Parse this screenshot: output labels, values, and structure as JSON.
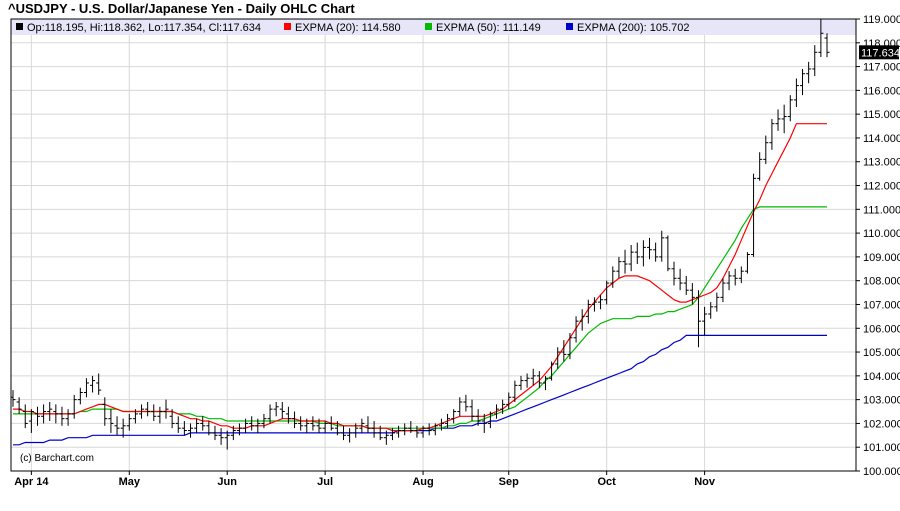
{
  "title": "^USDJPY - U.S. Dollar/Japanese Yen - Daily OHLC Chart",
  "legend": {
    "ohlc": "Op:118.195, Hi:118.362, Lo:117.354, Cl:117.634",
    "ema20": "EXPMA (20): 114.580",
    "ema50": "EXPMA (50): 111.149",
    "ema200": "EXPMA (200): 105.702"
  },
  "credit": "(c) Barchart.com",
  "last_price_label": "117.634",
  "colors": {
    "ohlc": "#000000",
    "ema20": "#ff0000",
    "ema50": "#00bb00",
    "ema200": "#0000cc",
    "grid": "#d8d8d8",
    "legend_bg": "#e6e6f8",
    "plot_border": "#000000"
  },
  "chart_data": {
    "type": "line",
    "subtype": "ohlc",
    "x_labels": [
      "Apr 14",
      "May",
      "Jun",
      "Jul",
      "Aug",
      "Sep",
      "Oct",
      "Nov"
    ],
    "x_label_index": [
      3,
      19,
      35,
      51,
      67,
      81,
      97,
      113
    ],
    "ylim": [
      100.0,
      119.0
    ],
    "y_ticks": [
      100.0,
      101.0,
      102.0,
      103.0,
      104.0,
      105.0,
      106.0,
      107.0,
      108.0,
      109.0,
      110.0,
      111.0,
      112.0,
      113.0,
      114.0,
      115.0,
      116.0,
      117.0,
      118.0,
      119.0
    ],
    "y_tick_labels": [
      "100.000",
      "101.000",
      "102.000",
      "103.000",
      "104.000",
      "105.000",
      "106.000",
      "107.000",
      "108.000",
      "109.000",
      "110.000",
      "111.000",
      "112.000",
      "113.000",
      "114.000",
      "115.000",
      "116.000",
      "117.000",
      "118.000",
      "119.000"
    ],
    "grid": true,
    "legend_position": "top",
    "ohlc": [
      [
        103.1,
        103.4,
        102.7,
        103.0
      ],
      [
        102.9,
        103.1,
        102.4,
        102.6
      ],
      [
        102.5,
        102.8,
        101.8,
        102.0
      ],
      [
        102.1,
        102.6,
        101.6,
        102.5
      ],
      [
        102.4,
        102.7,
        101.9,
        102.3
      ],
      [
        102.3,
        102.8,
        102.0,
        102.5
      ],
      [
        102.5,
        102.9,
        102.1,
        102.6
      ],
      [
        102.5,
        102.8,
        102.0,
        102.4
      ],
      [
        102.4,
        102.7,
        101.9,
        102.2
      ],
      [
        102.2,
        102.6,
        101.9,
        102.4
      ],
      [
        102.4,
        103.2,
        102.2,
        103.0
      ],
      [
        103.0,
        103.5,
        102.8,
        103.3
      ],
      [
        103.3,
        103.9,
        103.1,
        103.7
      ],
      [
        103.6,
        104.0,
        103.3,
        103.8
      ],
      [
        103.7,
        104.1,
        103.2,
        103.4
      ],
      [
        102.8,
        103.1,
        101.9,
        102.2
      ],
      [
        102.2,
        102.6,
        101.6,
        102.0
      ],
      [
        101.9,
        102.3,
        101.5,
        101.8
      ],
      [
        101.8,
        102.2,
        101.4,
        101.9
      ],
      [
        101.9,
        102.4,
        101.7,
        102.2
      ],
      [
        102.2,
        102.6,
        102.0,
        102.4
      ],
      [
        102.4,
        102.8,
        102.2,
        102.6
      ],
      [
        102.6,
        102.9,
        102.3,
        102.5
      ],
      [
        102.5,
        102.8,
        102.1,
        102.3
      ],
      [
        102.3,
        102.7,
        102.0,
        102.5
      ],
      [
        102.5,
        103.0,
        102.2,
        102.6
      ],
      [
        102.3,
        102.6,
        101.8,
        102.0
      ],
      [
        102.0,
        102.3,
        101.6,
        101.8
      ],
      [
        101.8,
        102.1,
        101.5,
        101.7
      ],
      [
        101.7,
        102.0,
        101.4,
        101.8
      ],
      [
        101.8,
        102.2,
        101.6,
        102.0
      ],
      [
        102.0,
        102.3,
        101.7,
        101.9
      ],
      [
        101.9,
        102.1,
        101.5,
        101.6
      ],
      [
        101.6,
        101.9,
        101.3,
        101.5
      ],
      [
        101.5,
        101.8,
        101.1,
        101.4
      ],
      [
        101.4,
        101.7,
        100.9,
        101.5
      ],
      [
        101.5,
        101.9,
        101.3,
        101.7
      ],
      [
        101.7,
        102.0,
        101.5,
        101.8
      ],
      [
        101.8,
        102.2,
        101.6,
        102.0
      ],
      [
        102.0,
        102.3,
        101.7,
        101.9
      ],
      [
        101.9,
        102.2,
        101.6,
        102.0
      ],
      [
        102.0,
        102.4,
        101.8,
        102.2
      ],
      [
        102.2,
        102.8,
        102.0,
        102.6
      ],
      [
        102.6,
        102.9,
        102.3,
        102.7
      ],
      [
        102.6,
        102.9,
        102.2,
        102.5
      ],
      [
        102.4,
        102.7,
        102.0,
        102.2
      ],
      [
        102.2,
        102.5,
        101.8,
        102.0
      ],
      [
        102.0,
        102.3,
        101.7,
        101.9
      ],
      [
        101.9,
        102.2,
        101.6,
        102.0
      ],
      [
        102.0,
        102.3,
        101.7,
        101.9
      ],
      [
        101.9,
        102.2,
        101.6,
        101.8
      ],
      [
        101.8,
        102.1,
        101.6,
        102.0
      ],
      [
        102.0,
        102.3,
        101.7,
        101.8
      ],
      [
        101.8,
        102.1,
        101.5,
        101.6
      ],
      [
        101.6,
        101.9,
        101.3,
        101.5
      ],
      [
        101.5,
        101.8,
        101.2,
        101.6
      ],
      [
        101.6,
        102.0,
        101.4,
        101.8
      ],
      [
        101.8,
        102.2,
        101.6,
        102.0
      ],
      [
        101.9,
        102.3,
        101.6,
        101.8
      ],
      [
        101.8,
        102.1,
        101.4,
        101.6
      ],
      [
        101.6,
        101.9,
        101.3,
        101.4
      ],
      [
        101.4,
        101.7,
        101.1,
        101.5
      ],
      [
        101.5,
        101.8,
        101.3,
        101.6
      ],
      [
        101.6,
        101.9,
        101.4,
        101.7
      ],
      [
        101.7,
        102.0,
        101.5,
        101.8
      ],
      [
        101.8,
        102.1,
        101.6,
        101.7
      ],
      [
        101.7,
        101.9,
        101.4,
        101.6
      ],
      [
        101.6,
        101.9,
        101.4,
        101.8
      ],
      [
        101.8,
        102.0,
        101.5,
        101.7
      ],
      [
        101.7,
        102.0,
        101.5,
        101.9
      ],
      [
        101.9,
        102.2,
        101.7,
        102.0
      ],
      [
        102.0,
        102.4,
        101.8,
        102.2
      ],
      [
        102.2,
        102.6,
        102.0,
        102.5
      ],
      [
        102.5,
        103.1,
        102.3,
        102.9
      ],
      [
        102.9,
        103.2,
        102.5,
        102.7
      ],
      [
        102.7,
        103.0,
        102.1,
        102.3
      ],
      [
        102.3,
        102.6,
        101.9,
        102.1
      ],
      [
        102.1,
        102.4,
        101.6,
        102.0
      ],
      [
        102.0,
        102.5,
        101.8,
        102.4
      ],
      [
        102.4,
        102.8,
        102.2,
        102.6
      ],
      [
        102.6,
        103.0,
        102.4,
        102.8
      ],
      [
        102.8,
        103.3,
        102.6,
        103.1
      ],
      [
        103.1,
        103.8,
        102.9,
        103.6
      ],
      [
        103.6,
        104.0,
        103.4,
        103.8
      ],
      [
        103.8,
        104.1,
        103.5,
        103.9
      ],
      [
        103.9,
        104.3,
        103.6,
        104.0
      ],
      [
        104.0,
        104.2,
        103.5,
        103.7
      ],
      [
        103.7,
        104.0,
        103.4,
        103.9
      ],
      [
        103.9,
        104.6,
        103.8,
        104.5
      ],
      [
        104.5,
        105.2,
        104.3,
        105.0
      ],
      [
        105.0,
        105.5,
        104.6,
        104.9
      ],
      [
        104.9,
        105.8,
        104.7,
        105.6
      ],
      [
        105.6,
        106.5,
        105.4,
        106.3
      ],
      [
        106.3,
        106.8,
        105.9,
        106.5
      ],
      [
        106.5,
        107.2,
        106.2,
        107.0
      ],
      [
        107.0,
        107.3,
        106.7,
        107.1
      ],
      [
        107.1,
        107.4,
        106.8,
        107.2
      ],
      [
        107.2,
        108.0,
        107.0,
        107.9
      ],
      [
        107.9,
        108.6,
        107.7,
        108.4
      ],
      [
        108.4,
        109.0,
        108.1,
        108.8
      ],
      [
        108.8,
        109.3,
        108.3,
        108.7
      ],
      [
        108.7,
        109.5,
        108.4,
        109.2
      ],
      [
        109.2,
        109.6,
        108.7,
        109.0
      ],
      [
        109.0,
        109.7,
        108.6,
        109.4
      ],
      [
        109.4,
        109.8,
        108.9,
        109.3
      ],
      [
        109.3,
        109.6,
        108.8,
        109.0
      ],
      [
        109.0,
        110.1,
        108.8,
        109.8
      ],
      [
        109.8,
        109.9,
        108.4,
        108.5
      ],
      [
        108.5,
        108.8,
        107.8,
        108.1
      ],
      [
        108.1,
        108.5,
        107.6,
        107.9
      ],
      [
        107.9,
        108.2,
        107.4,
        107.6
      ],
      [
        107.6,
        107.9,
        107.0,
        107.3
      ],
      [
        107.3,
        107.6,
        105.2,
        106.3
      ],
      [
        106.3,
        106.9,
        105.7,
        106.6
      ],
      [
        106.6,
        107.1,
        106.4,
        106.9
      ],
      [
        106.9,
        107.5,
        106.7,
        107.3
      ],
      [
        107.3,
        108.1,
        107.1,
        107.9
      ],
      [
        107.9,
        108.4,
        107.6,
        108.2
      ],
      [
        108.2,
        108.5,
        107.8,
        108.1
      ],
      [
        108.1,
        108.6,
        107.9,
        108.4
      ],
      [
        108.4,
        109.2,
        108.3,
        109.1
      ],
      [
        109.1,
        112.5,
        109.0,
        112.3
      ],
      [
        112.3,
        113.4,
        112.2,
        113.1
      ],
      [
        113.1,
        114.1,
        112.9,
        113.8
      ],
      [
        113.8,
        114.8,
        113.5,
        114.6
      ],
      [
        114.6,
        115.2,
        114.3,
        114.8
      ],
      [
        114.8,
        115.4,
        114.2,
        114.9
      ],
      [
        114.9,
        115.8,
        114.7,
        115.6
      ],
      [
        115.6,
        116.5,
        115.3,
        116.2
      ],
      [
        116.2,
        116.9,
        115.8,
        116.7
      ],
      [
        116.7,
        117.2,
        116.3,
        116.9
      ],
      [
        116.9,
        117.9,
        116.6,
        117.6
      ],
      [
        117.6,
        119.0,
        117.4,
        118.4
      ],
      [
        118.2,
        118.4,
        117.4,
        117.6
      ]
    ],
    "ema20": [
      102.6,
      102.6,
      102.5,
      102.5,
      102.4,
      102.4,
      102.4,
      102.4,
      102.4,
      102.4,
      102.4,
      102.5,
      102.6,
      102.7,
      102.8,
      102.8,
      102.7,
      102.6,
      102.5,
      102.5,
      102.5,
      102.5,
      102.5,
      102.5,
      102.5,
      102.5,
      102.5,
      102.4,
      102.3,
      102.2,
      102.2,
      102.1,
      102.1,
      102.0,
      101.9,
      101.9,
      101.8,
      101.8,
      101.8,
      101.9,
      101.9,
      101.9,
      102.0,
      102.1,
      102.2,
      102.2,
      102.2,
      102.1,
      102.1,
      102.1,
      102.1,
      102.1,
      102.0,
      102.0,
      101.9,
      101.9,
      101.9,
      101.9,
      101.8,
      101.8,
      101.8,
      101.8,
      101.7,
      101.7,
      101.7,
      101.7,
      101.7,
      101.8,
      101.8,
      101.9,
      102.0,
      102.1,
      102.2,
      102.3,
      102.3,
      102.3,
      102.3,
      102.3,
      102.4,
      102.5,
      102.6,
      102.8,
      103.0,
      103.2,
      103.4,
      103.6,
      103.8,
      104.1,
      104.4,
      104.8,
      105.2,
      105.6,
      106.0,
      106.4,
      106.8,
      107.1,
      107.4,
      107.7,
      107.9,
      108.1,
      108.2,
      108.2,
      108.2,
      108.1,
      108.0,
      107.8,
      107.6,
      107.4,
      107.2,
      107.1,
      107.1,
      107.2,
      107.3,
      107.4,
      107.5,
      107.7,
      108.1,
      108.6,
      109.1,
      109.7,
      110.3,
      110.9,
      111.4,
      112.0,
      112.5,
      113.0,
      113.5,
      114.0,
      114.6,
      114.6,
      114.6,
      114.6,
      114.6,
      114.6
    ],
    "ema50": [
      102.4,
      102.4,
      102.4,
      102.4,
      102.4,
      102.4,
      102.4,
      102.4,
      102.4,
      102.4,
      102.4,
      102.5,
      102.5,
      102.6,
      102.6,
      102.6,
      102.6,
      102.6,
      102.5,
      102.5,
      102.5,
      102.5,
      102.5,
      102.5,
      102.5,
      102.5,
      102.5,
      102.4,
      102.4,
      102.4,
      102.3,
      102.3,
      102.2,
      102.2,
      102.2,
      102.1,
      102.1,
      102.1,
      102.1,
      102.1,
      102.1,
      102.1,
      102.1,
      102.1,
      102.1,
      102.1,
      102.1,
      102.1,
      102.1,
      102.1,
      102.0,
      102.0,
      102.0,
      101.9,
      101.9,
      101.9,
      101.9,
      101.9,
      101.8,
      101.8,
      101.8,
      101.8,
      101.8,
      101.8,
      101.8,
      101.8,
      101.8,
      101.8,
      101.8,
      101.8,
      101.8,
      101.9,
      101.9,
      102.0,
      102.0,
      102.1,
      102.1,
      102.2,
      102.3,
      102.4,
      102.5,
      102.6,
      102.7,
      102.9,
      103.1,
      103.3,
      103.5,
      103.8,
      104.0,
      104.3,
      104.6,
      104.9,
      105.2,
      105.5,
      105.8,
      106.0,
      106.2,
      106.3,
      106.4,
      106.4,
      106.4,
      106.4,
      106.5,
      106.5,
      106.5,
      106.6,
      106.6,
      106.7,
      106.7,
      106.8,
      106.9,
      107.0,
      107.3,
      107.7,
      108.1,
      108.5,
      108.9,
      109.3,
      109.7,
      110.2,
      110.6,
      111.0,
      111.1,
      111.1,
      111.1,
      111.1,
      111.1,
      111.1,
      111.1,
      111.1,
      111.1,
      111.1,
      111.1,
      111.1
    ],
    "ema200": [
      101.1,
      101.1,
      101.2,
      101.2,
      101.2,
      101.2,
      101.3,
      101.3,
      101.3,
      101.4,
      101.4,
      101.4,
      101.4,
      101.5,
      101.5,
      101.5,
      101.5,
      101.5,
      101.5,
      101.5,
      101.5,
      101.5,
      101.5,
      101.5,
      101.5,
      101.5,
      101.5,
      101.5,
      101.5,
      101.6,
      101.6,
      101.6,
      101.6,
      101.6,
      101.6,
      101.6,
      101.6,
      101.6,
      101.6,
      101.6,
      101.6,
      101.6,
      101.6,
      101.6,
      101.6,
      101.6,
      101.6,
      101.6,
      101.6,
      101.6,
      101.6,
      101.6,
      101.6,
      101.6,
      101.6,
      101.6,
      101.6,
      101.6,
      101.6,
      101.6,
      101.6,
      101.6,
      101.6,
      101.7,
      101.7,
      101.7,
      101.7,
      101.7,
      101.7,
      101.8,
      101.8,
      101.8,
      101.8,
      101.9,
      101.9,
      101.9,
      102.0,
      102.0,
      102.1,
      102.1,
      102.2,
      102.3,
      102.4,
      102.5,
      102.6,
      102.7,
      102.8,
      102.9,
      103.0,
      103.1,
      103.2,
      103.3,
      103.4,
      103.5,
      103.6,
      103.7,
      103.8,
      103.9,
      104.0,
      104.1,
      104.2,
      104.3,
      104.5,
      104.6,
      104.8,
      104.9,
      105.1,
      105.2,
      105.4,
      105.5,
      105.7,
      105.7,
      105.7,
      105.7,
      105.7,
      105.7,
      105.7,
      105.7,
      105.7,
      105.7,
      105.7,
      105.7,
      105.7,
      105.7,
      105.7,
      105.7,
      105.7,
      105.7,
      105.7,
      105.7,
      105.7,
      105.7,
      105.7,
      105.7
    ]
  }
}
